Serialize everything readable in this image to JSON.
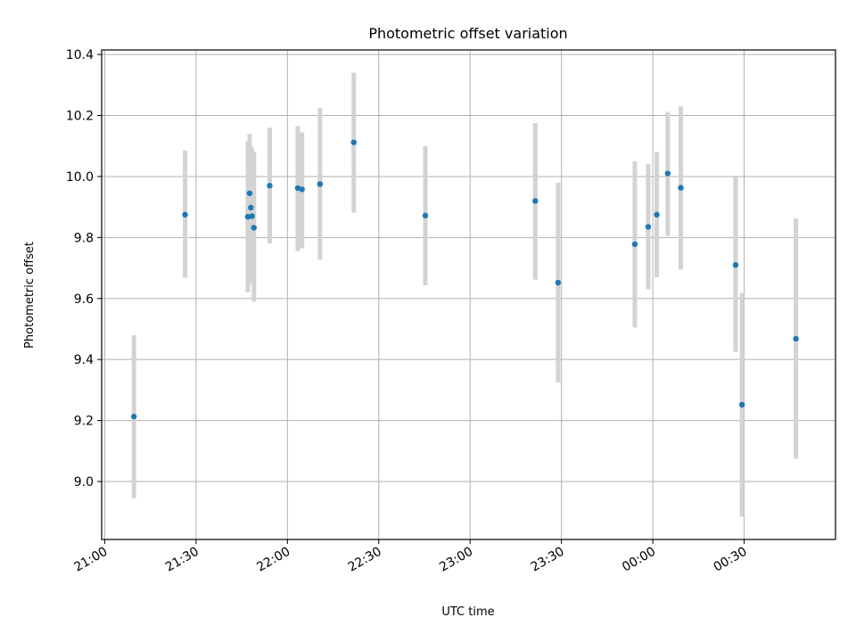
{
  "chart_data": {
    "type": "scatter",
    "title": "Photometric offset variation",
    "xlabel": "UTC time",
    "ylabel": "Photometric offset",
    "xlim_minutes": [
      -1,
      240
    ],
    "ylim": [
      8.81,
      10.415
    ],
    "x_ticks": [
      {
        "minutes": 0,
        "label": "21:00"
      },
      {
        "minutes": 30,
        "label": "21:30"
      },
      {
        "minutes": 60,
        "label": "22:00"
      },
      {
        "minutes": 90,
        "label": "22:30"
      },
      {
        "minutes": 120,
        "label": "23:00"
      },
      {
        "minutes": 150,
        "label": "23:30"
      },
      {
        "minutes": 180,
        "label": "00:00"
      },
      {
        "minutes": 210,
        "label": "00:30"
      }
    ],
    "y_ticks": [
      {
        "value": 9.0,
        "label": "9.0"
      },
      {
        "value": 9.2,
        "label": "9.2"
      },
      {
        "value": 9.4,
        "label": "9.4"
      },
      {
        "value": 9.6,
        "label": "9.6"
      },
      {
        "value": 9.8,
        "label": "9.8"
      },
      {
        "value": 10.0,
        "label": "10.0"
      },
      {
        "value": 10.2,
        "label": "10.2"
      },
      {
        "value": 10.4,
        "label": "10.4"
      }
    ],
    "grid": true,
    "marker_color": "#1f77b4",
    "errorbar_color": "#d3d3d3",
    "points": [
      {
        "t": "21:09",
        "minutes": 9.6,
        "y": 9.213,
        "lo": 8.945,
        "hi": 9.48
      },
      {
        "t": "21:26",
        "minutes": 26.4,
        "y": 9.875,
        "lo": 9.668,
        "hi": 10.085
      },
      {
        "t": "21:47",
        "minutes": 47.0,
        "y": 9.868,
        "lo": 9.62,
        "hi": 10.115
      },
      {
        "t": "21:47",
        "minutes": 47.6,
        "y": 9.945,
        "lo": 9.74,
        "hi": 10.14
      },
      {
        "t": "21:48",
        "minutes": 48.0,
        "y": 9.898,
        "lo": 9.68,
        "hi": 10.1
      },
      {
        "t": "21:48",
        "minutes": 48.4,
        "y": 9.87,
        "lo": 9.65,
        "hi": 10.09
      },
      {
        "t": "21:49",
        "minutes": 49.0,
        "y": 9.832,
        "lo": 9.59,
        "hi": 10.08
      },
      {
        "t": "21:54",
        "minutes": 54.2,
        "y": 9.97,
        "lo": 9.78,
        "hi": 10.16
      },
      {
        "t": "22:03",
        "minutes": 63.4,
        "y": 9.962,
        "lo": 9.755,
        "hi": 10.165
      },
      {
        "t": "22:04",
        "minutes": 64.8,
        "y": 9.958,
        "lo": 9.765,
        "hi": 10.145
      },
      {
        "t": "22:11",
        "minutes": 70.7,
        "y": 9.975,
        "lo": 9.728,
        "hi": 10.225
      },
      {
        "t": "22:22",
        "minutes": 81.8,
        "y": 10.112,
        "lo": 9.882,
        "hi": 10.34
      },
      {
        "t": "22:45",
        "minutes": 105.3,
        "y": 9.872,
        "lo": 9.643,
        "hi": 10.1
      },
      {
        "t": "23:21",
        "minutes": 141.4,
        "y": 9.92,
        "lo": 9.662,
        "hi": 10.175
      },
      {
        "t": "23:29",
        "minutes": 148.9,
        "y": 9.652,
        "lo": 9.325,
        "hi": 9.98
      },
      {
        "t": "23:54",
        "minutes": 174.1,
        "y": 9.778,
        "lo": 9.505,
        "hi": 10.05
      },
      {
        "t": "23:58",
        "minutes": 178.5,
        "y": 9.835,
        "lo": 9.63,
        "hi": 10.04
      },
      {
        "t": "00:01",
        "minutes": 181.3,
        "y": 9.875,
        "lo": 9.67,
        "hi": 10.08
      },
      {
        "t": "00:05",
        "minutes": 184.9,
        "y": 10.01,
        "lo": 9.805,
        "hi": 10.212
      },
      {
        "t": "00:09",
        "minutes": 189.2,
        "y": 9.963,
        "lo": 9.695,
        "hi": 10.23
      },
      {
        "t": "00:27",
        "minutes": 207.2,
        "y": 9.71,
        "lo": 9.425,
        "hi": 9.998
      },
      {
        "t": "00:29",
        "minutes": 209.3,
        "y": 9.252,
        "lo": 8.885,
        "hi": 9.618
      },
      {
        "t": "00:47",
        "minutes": 227.0,
        "y": 9.468,
        "lo": 9.075,
        "hi": 9.862
      }
    ]
  }
}
